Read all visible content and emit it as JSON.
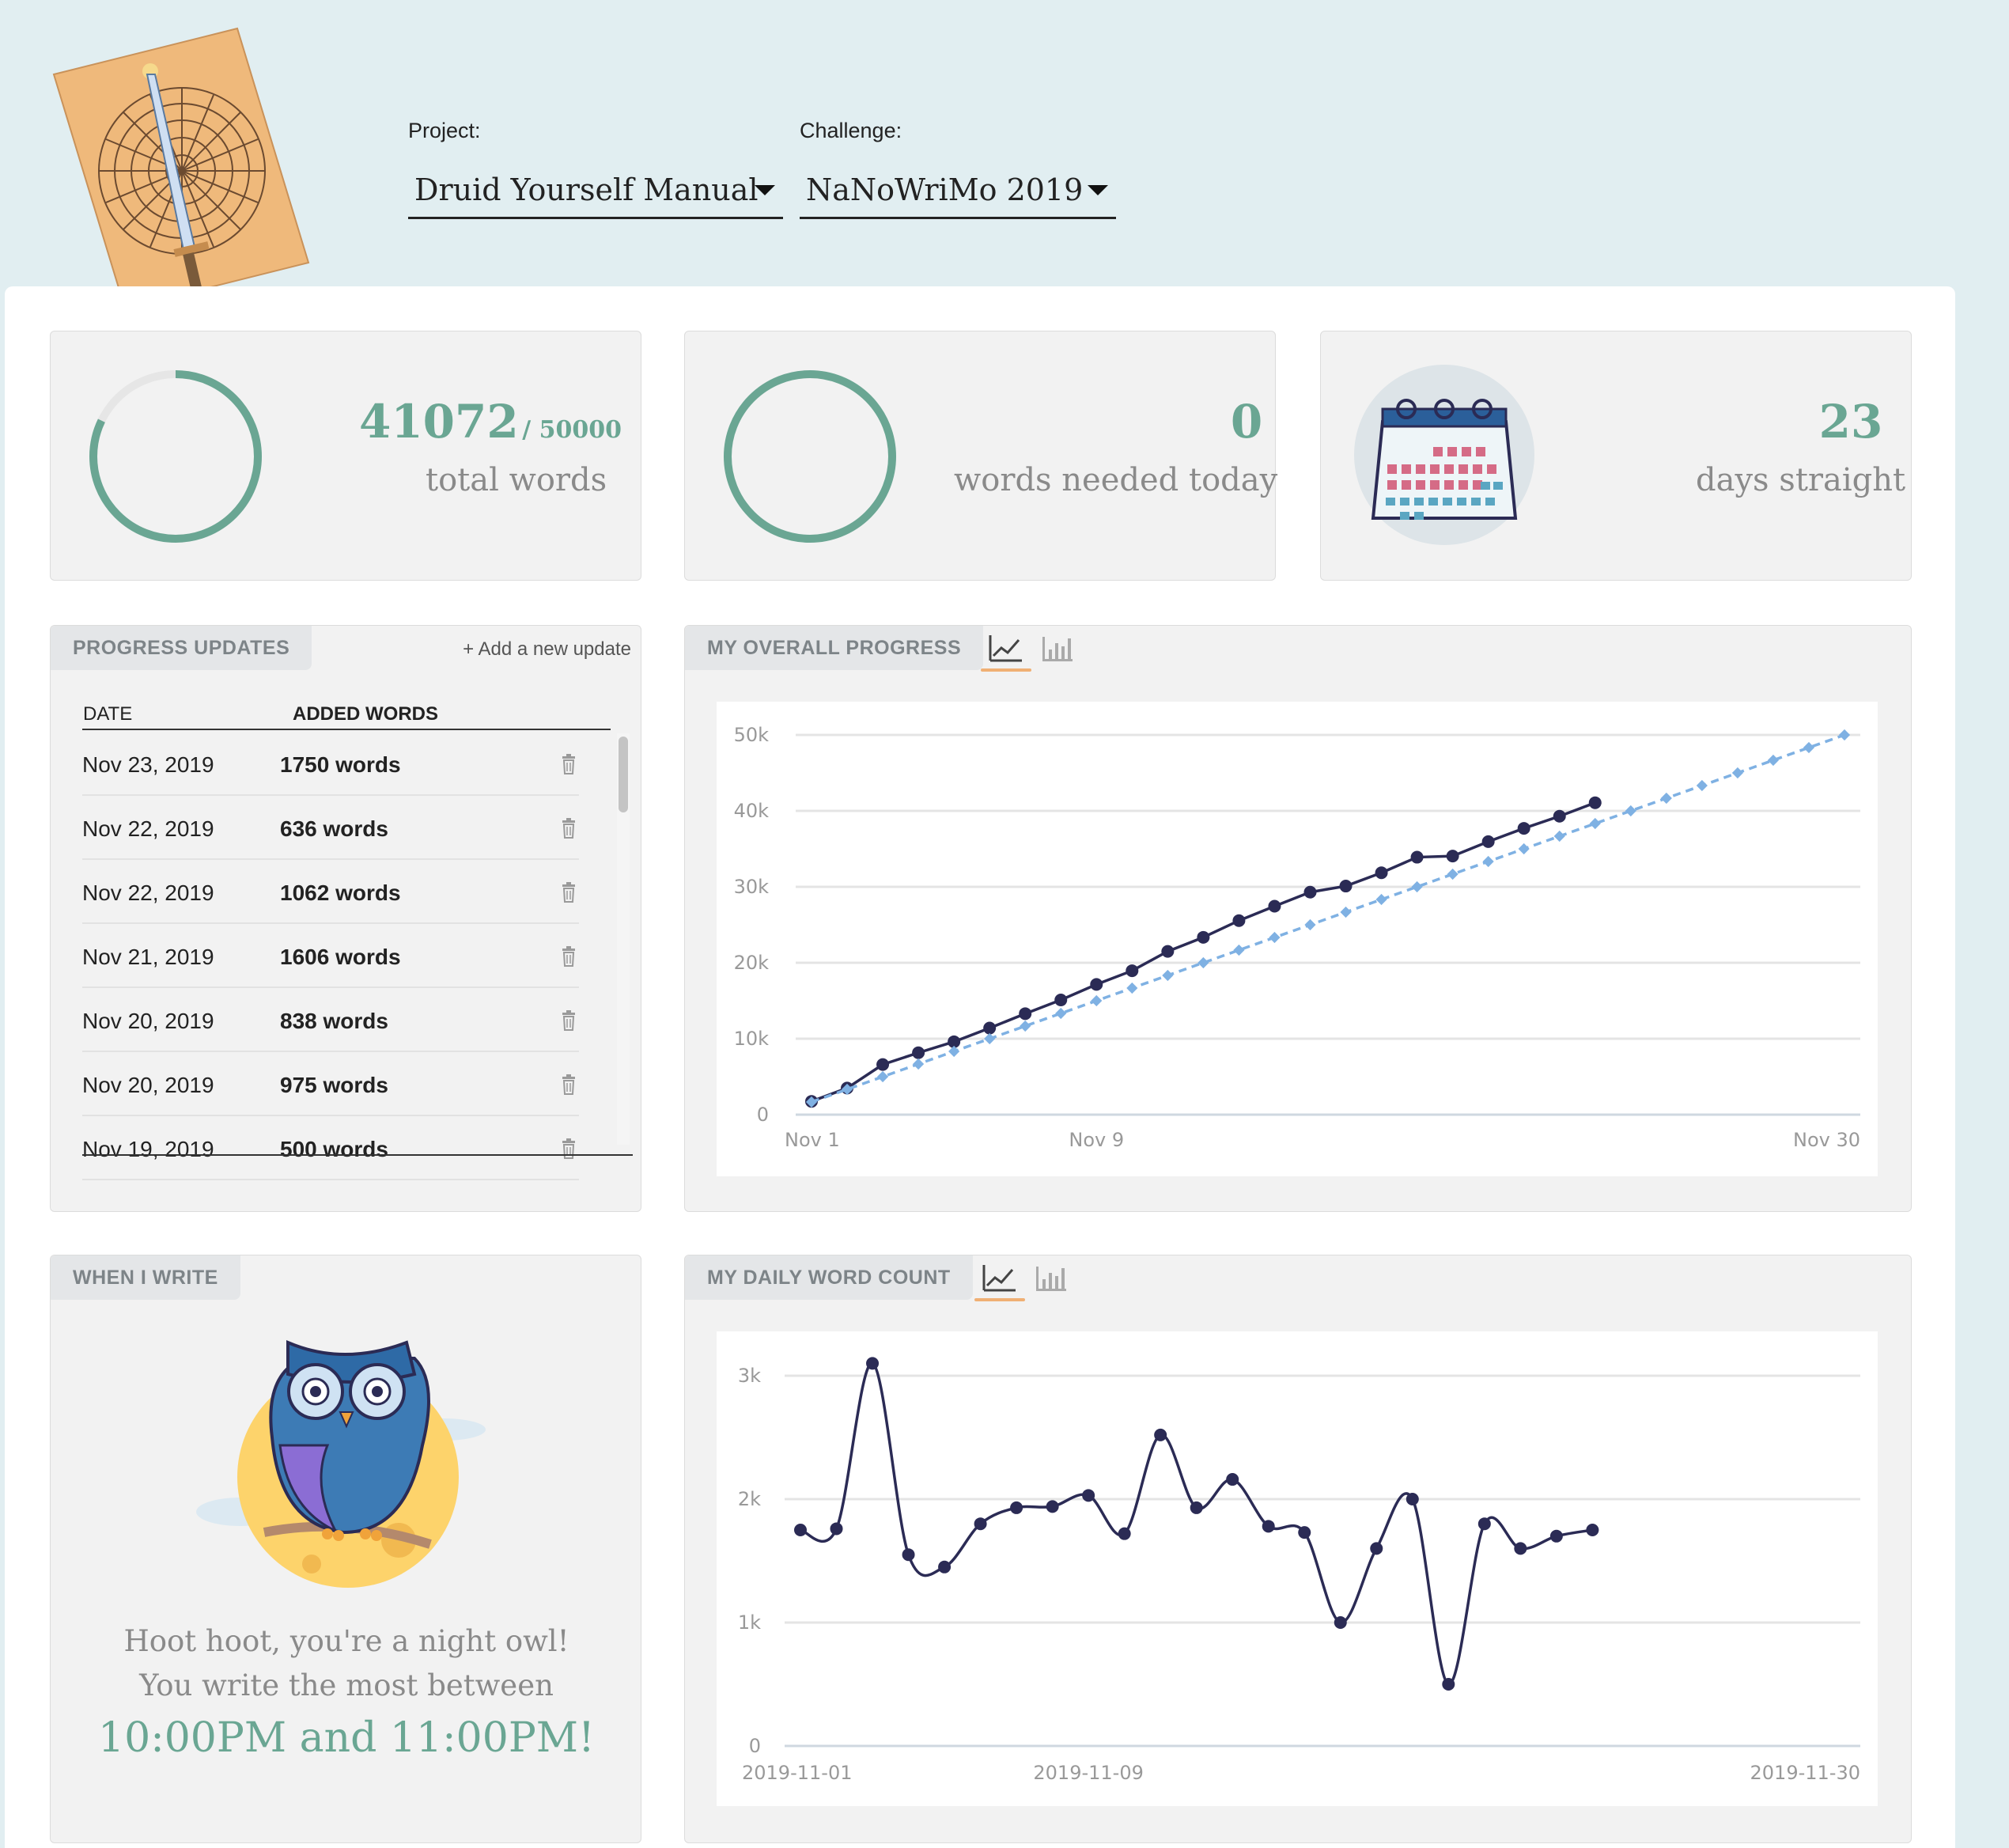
{
  "header": {
    "project_label": "Project:",
    "project_value": "Druid Yourself Manual",
    "challenge_label": "Challenge:",
    "challenge_value": "NaNoWriMo 2019"
  },
  "stats": {
    "total_words": "41072",
    "goal": "/ 50000",
    "total_words_label": "total words",
    "words_needed": "0",
    "words_needed_label": "words needed today",
    "streak": "23",
    "streak_label": "days straight",
    "progress_fraction": 0.82144
  },
  "updates": {
    "title": "PROGRESS UPDATES",
    "add_link": "+ Add a new update",
    "col_date": "DATE",
    "col_words": "ADDED WORDS",
    "rows": [
      {
        "date": "Nov 23, 2019",
        "words": "1750 words"
      },
      {
        "date": "Nov 22, 2019",
        "words": "636 words"
      },
      {
        "date": "Nov 22, 2019",
        "words": "1062 words"
      },
      {
        "date": "Nov 21, 2019",
        "words": "1606 words"
      },
      {
        "date": "Nov 20, 2019",
        "words": "838 words"
      },
      {
        "date": "Nov 20, 2019",
        "words": "975 words"
      },
      {
        "date": "Nov 19, 2019",
        "words": "500 words"
      }
    ]
  },
  "overall": {
    "title": "MY OVERALL PROGRESS"
  },
  "daily": {
    "title": "MY DAILY WORD COUNT"
  },
  "when": {
    "title": "WHEN I WRITE",
    "line1": "Hoot hoot, you're a night owl!",
    "line2": "You write the most between",
    "line3": "10:00PM and 11:00PM!"
  },
  "icons": {
    "line_chart": "line-chart-icon",
    "bar_chart": "bar-chart-icon",
    "trash": "trash-icon",
    "dropdown": "chevron-down-icon",
    "calendar": "calendar-icon",
    "owl": "owl-illustration",
    "cover": "book-cover-illustration"
  },
  "colors": {
    "accent_green": "#6aa693",
    "actual_line": "#2b2b55",
    "target_line": "#7fb1e3",
    "tab_underline": "#f0b074"
  },
  "chart_data": [
    {
      "type": "line",
      "x_labels": [
        "Nov 1",
        "Nov 9",
        "Nov 30"
      ],
      "x_range": [
        1,
        30
      ],
      "y_ticks": [
        "0",
        "10k",
        "20k",
        "30k",
        "40k",
        "50k"
      ],
      "ylim": [
        0,
        50000
      ],
      "series": [
        {
          "name": "",
          "style": "solid",
          "x": [
            1,
            2,
            3,
            4,
            5,
            6,
            7,
            8,
            9,
            10,
            11,
            12,
            13,
            14,
            15,
            16,
            17,
            18,
            19,
            20,
            21,
            22,
            23
          ],
          "y": [
            1750,
            3500,
            6600,
            8150,
            9600,
            11400,
            13300,
            15100,
            17150,
            18950,
            21500,
            23350,
            25550,
            27450,
            29300,
            30100,
            31850,
            33900,
            34050,
            35950,
            37700,
            39300,
            41072
          ]
        },
        {
          "name": "",
          "style": "dashed",
          "x": [
            1,
            2,
            3,
            4,
            5,
            6,
            7,
            8,
            9,
            10,
            11,
            12,
            13,
            14,
            15,
            16,
            17,
            18,
            19,
            20,
            21,
            22,
            23,
            24,
            25,
            26,
            27,
            28,
            29,
            30
          ],
          "y": [
            1667,
            3333,
            5000,
            6667,
            8333,
            10000,
            11667,
            13333,
            15000,
            16667,
            18333,
            20000,
            21667,
            23333,
            25000,
            26667,
            28333,
            30000,
            31667,
            33333,
            35000,
            36667,
            38333,
            40000,
            41667,
            43333,
            45000,
            46667,
            48333,
            50000
          ]
        }
      ]
    },
    {
      "type": "line",
      "x_labels": [
        "2019-11-01",
        "2019-11-09",
        "2019-11-30"
      ],
      "x_range": [
        1,
        30
      ],
      "y_ticks": [
        "0",
        "1k",
        "2k",
        "3k"
      ],
      "ylim": [
        0,
        3000
      ],
      "series": [
        {
          "name": "",
          "x": [
            1,
            2,
            3,
            4,
            5,
            6,
            7,
            8,
            9,
            10,
            11,
            12,
            13,
            14,
            15,
            16,
            17,
            18,
            19,
            20,
            21,
            22,
            23
          ],
          "y": [
            1750,
            1760,
            3100,
            1550,
            1450,
            1800,
            1930,
            1940,
            2030,
            1720,
            2520,
            1930,
            2160,
            1780,
            1730,
            1000,
            1600,
            2000,
            500,
            1800,
            1600,
            1700,
            1750
          ]
        }
      ]
    }
  ]
}
